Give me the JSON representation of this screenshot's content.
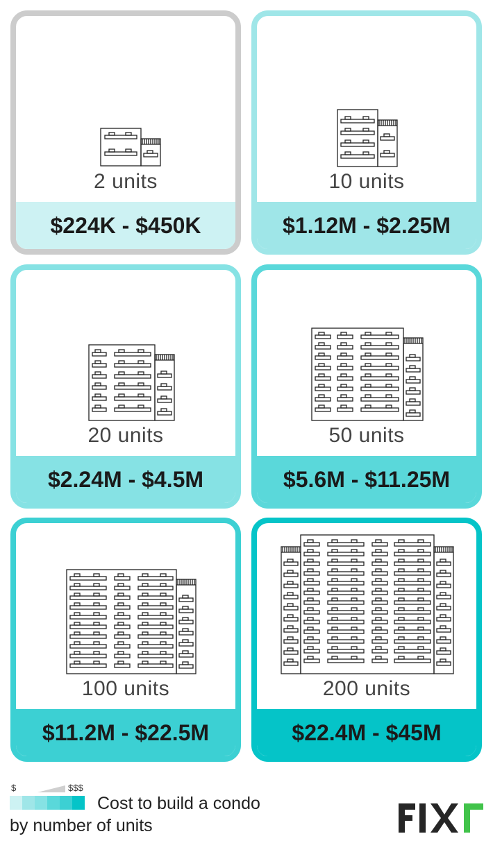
{
  "cards": [
    {
      "units": "2 units",
      "price": "$224K - $450K",
      "color": "#cdf2f3"
    },
    {
      "units": "10 units",
      "price": "$1.12M - $2.25M",
      "color": "#9fe6e8"
    },
    {
      "units": "20 units",
      "price": "$2.24M - $4.5M",
      "color": "#86e2e4"
    },
    {
      "units": "50 units",
      "price": "$5.6M - $11.25M",
      "color": "#5ad8da"
    },
    {
      "units": "100 units",
      "price": "$11.2M - $22.5M",
      "color": "#3cd0d3"
    },
    {
      "units": "200 units",
      "price": "$22.4M - $45M",
      "color": "#05c4c8"
    }
  ],
  "legend": {
    "low_label": "$",
    "high_label": "$$$",
    "swatches": [
      "#cdf2f3",
      "#9fe6e8",
      "#86e2e4",
      "#5ad8da",
      "#3cd0d3",
      "#05c4c8"
    ],
    "line1": "Cost to build a condo",
    "line2": "by number of units"
  },
  "logo": {
    "brand_green": "#41c34a",
    "brand_dark": "#262626"
  }
}
